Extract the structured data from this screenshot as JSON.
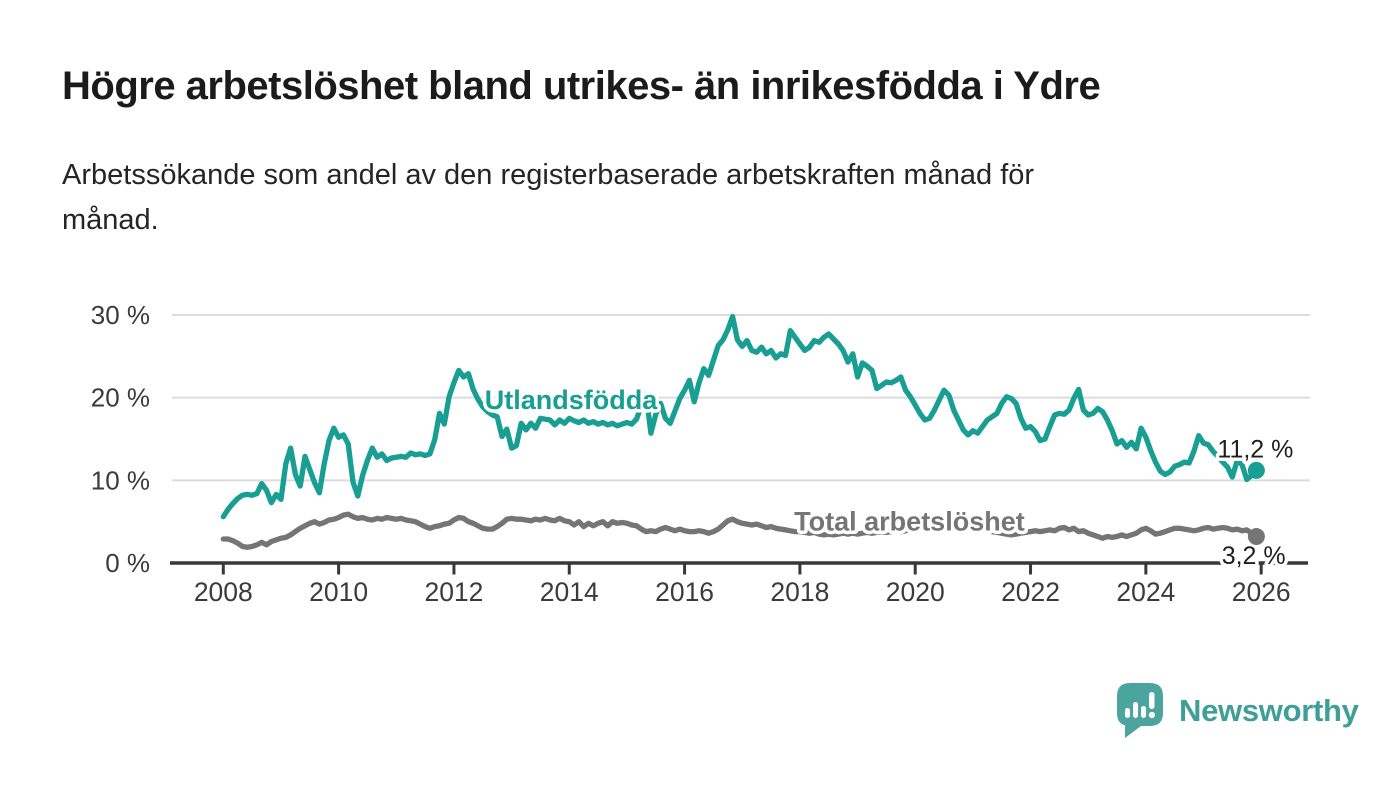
{
  "header": {
    "title": "Högre arbetslöshet bland utrikes- än inrikesfödda i Ydre",
    "subtitle_line1": "Arbetssökande som andel av den registerbaserade arbetskraften månad för",
    "subtitle_line2": "månad."
  },
  "logo": {
    "name": "Newsworthy"
  },
  "chart_data": {
    "type": "line",
    "x": {
      "start_year": 2008,
      "interval_months": 1,
      "end_label_year": 2026
    },
    "x_ticks": [
      2008,
      2010,
      2012,
      2014,
      2016,
      2018,
      2020,
      2022,
      2024,
      2026
    ],
    "y_ticks": [
      {
        "value": 0,
        "label": "0 %"
      },
      {
        "value": 10,
        "label": "10 %"
      },
      {
        "value": 20,
        "label": "20 %"
      },
      {
        "value": 30,
        "label": "30 %"
      }
    ],
    "ylim": [
      0,
      30
    ],
    "grid": "horizontal",
    "colors": {
      "foreign_born": "#189e92",
      "total": "#757575",
      "axis": "#3b3b3b",
      "gridline": "#dcdcdc",
      "value_label": "#1f1f1f"
    },
    "series": [
      {
        "name": "Utlandsfödda",
        "color": "#189e92",
        "end_label": "11,2 %",
        "end_value": 11.2,
        "values": [
          5.6,
          6.5,
          7.2,
          7.8,
          8.2,
          8.3,
          8.2,
          8.4,
          9.6,
          8.8,
          7.3,
          8.3,
          7.7,
          12.0,
          13.9,
          10.7,
          9.3,
          12.9,
          11.3,
          9.7,
          8.5,
          12.0,
          14.8,
          16.3,
          15.2,
          15.5,
          14.4,
          9.8,
          8.1,
          10.6,
          12.4,
          13.9,
          12.8,
          13.2,
          12.4,
          12.7,
          12.8,
          12.9,
          12.8,
          13.3,
          13.1,
          13.2,
          13.0,
          13.2,
          14.9,
          18.1,
          16.8,
          20.1,
          21.8,
          23.3,
          22.5,
          22.9,
          21.0,
          19.8,
          18.9,
          18.3,
          17.9,
          17.7,
          15.3,
          16.2,
          13.9,
          14.2,
          16.9,
          16.1,
          16.9,
          16.3,
          17.5,
          17.4,
          17.3,
          16.7,
          17.3,
          16.9,
          17.5,
          17.2,
          17.0,
          17.3,
          16.9,
          17.1,
          16.8,
          17.0,
          16.7,
          16.9,
          16.6,
          16.8,
          17.0,
          16.8,
          17.4,
          19.0,
          20.4,
          15.7,
          18.0,
          19.3,
          17.5,
          16.9,
          18.4,
          19.9,
          20.9,
          22.1,
          19.5,
          21.8,
          23.5,
          22.7,
          24.5,
          26.3,
          27.0,
          28.2,
          29.8,
          27.0,
          26.2,
          26.9,
          25.7,
          25.5,
          26.1,
          25.3,
          25.7,
          24.8,
          25.3,
          25.1,
          28.1,
          27.3,
          26.5,
          25.7,
          26.1,
          26.9,
          26.7,
          27.3,
          27.7,
          27.1,
          26.5,
          25.7,
          24.3,
          25.3,
          22.5,
          24.2,
          23.8,
          23.3,
          21.1,
          21.5,
          21.9,
          21.8,
          22.1,
          22.5,
          20.9,
          20.1,
          19.1,
          18.1,
          17.3,
          17.5,
          18.5,
          19.7,
          20.9,
          20.3,
          18.5,
          17.3,
          16.1,
          15.5,
          16.0,
          15.7,
          16.5,
          17.3,
          17.7,
          18.1,
          19.3,
          20.1,
          19.9,
          19.3,
          17.5,
          16.3,
          16.5,
          15.9,
          14.8,
          15.0,
          16.5,
          17.9,
          18.1,
          18.0,
          18.5,
          19.9,
          21.0,
          18.5,
          17.9,
          18.1,
          18.7,
          18.3,
          17.3,
          16.0,
          14.4,
          14.8,
          14.0,
          14.6,
          13.8,
          16.3,
          15.2,
          13.6,
          12.2,
          11.1,
          10.7,
          11.0,
          11.7,
          11.9,
          12.2,
          12.1,
          13.5,
          15.4,
          14.5,
          14.3,
          13.5,
          12.9,
          12.2,
          11.6,
          10.4,
          12.4,
          11.9,
          10.1,
          10.6,
          11.2
        ]
      },
      {
        "name": "Total arbetslöshet",
        "color": "#757575",
        "end_label": "3,2 %",
        "end_value": 3.2,
        "values": [
          2.9,
          2.9,
          2.7,
          2.4,
          2.0,
          1.9,
          2.0,
          2.2,
          2.5,
          2.2,
          2.6,
          2.8,
          3.0,
          3.1,
          3.4,
          3.8,
          4.2,
          4.5,
          4.8,
          5.0,
          4.7,
          4.9,
          5.2,
          5.3,
          5.5,
          5.8,
          5.9,
          5.6,
          5.4,
          5.5,
          5.3,
          5.2,
          5.4,
          5.3,
          5.5,
          5.4,
          5.3,
          5.4,
          5.2,
          5.1,
          5.0,
          4.7,
          4.4,
          4.2,
          4.4,
          4.5,
          4.7,
          4.8,
          5.2,
          5.5,
          5.4,
          5.0,
          4.8,
          4.5,
          4.2,
          4.1,
          4.1,
          4.4,
          4.8,
          5.3,
          5.4,
          5.3,
          5.3,
          5.2,
          5.1,
          5.3,
          5.2,
          5.4,
          5.2,
          5.1,
          5.4,
          5.1,
          5.0,
          4.6,
          5.0,
          4.4,
          4.8,
          4.5,
          4.8,
          5.0,
          4.5,
          5.0,
          4.8,
          4.9,
          4.8,
          4.6,
          4.5,
          4.1,
          3.8,
          3.9,
          3.8,
          4.1,
          4.3,
          4.1,
          3.9,
          4.1,
          3.9,
          3.8,
          3.8,
          3.9,
          3.8,
          3.6,
          3.8,
          4.1,
          4.6,
          5.1,
          5.3,
          5.0,
          4.8,
          4.7,
          4.6,
          4.7,
          4.5,
          4.3,
          4.4,
          4.2,
          4.1,
          4.0,
          3.9,
          3.8,
          3.8,
          3.7,
          3.6,
          3.7,
          3.5,
          3.4,
          3.5,
          3.4,
          3.5,
          3.6,
          3.5,
          3.6,
          3.5,
          3.6,
          3.7,
          3.6,
          3.7,
          3.8,
          3.7,
          3.8,
          3.9,
          3.8,
          3.9,
          4.0,
          4.1,
          4.2,
          4.4,
          4.7,
          4.8,
          4.9,
          4.8,
          4.7,
          4.6,
          4.5,
          4.4,
          4.3,
          4.2,
          4.1,
          4.0,
          3.9,
          3.8,
          3.7,
          3.6,
          3.5,
          3.4,
          3.5,
          3.6,
          3.7,
          3.8,
          3.9,
          3.8,
          3.9,
          4.0,
          3.9,
          4.2,
          4.3,
          4.0,
          4.2,
          3.8,
          3.9,
          3.6,
          3.4,
          3.2,
          3.0,
          3.2,
          3.1,
          3.2,
          3.4,
          3.2,
          3.4,
          3.6,
          4.0,
          4.2,
          3.9,
          3.5,
          3.6,
          3.8,
          4.0,
          4.2,
          4.2,
          4.1,
          4.0,
          3.9,
          4.0,
          4.2,
          4.3,
          4.1,
          4.2,
          4.3,
          4.2,
          4.0,
          4.1,
          3.9,
          4.0,
          3.6,
          3.2
        ]
      }
    ],
    "annotations": [
      {
        "text": "Utlandsfödda",
        "year": 2014.03,
        "pct": 19.8,
        "color": "#189e92",
        "bold": true,
        "size": 27
      },
      {
        "text": "Total arbetslöshet",
        "year": 2019.9,
        "pct": 5.05,
        "color": "#757575",
        "bold": true,
        "size": 27
      },
      {
        "text": "11,2 %",
        "year": 2025.9,
        "pct": 13.8,
        "color": "#1f1f1f",
        "bold": false,
        "size": 25
      },
      {
        "text": "3,2 %",
        "year": 2025.87,
        "pct": 0.95,
        "color": "#1f1f1f",
        "bold": false,
        "size": 25
      }
    ]
  }
}
